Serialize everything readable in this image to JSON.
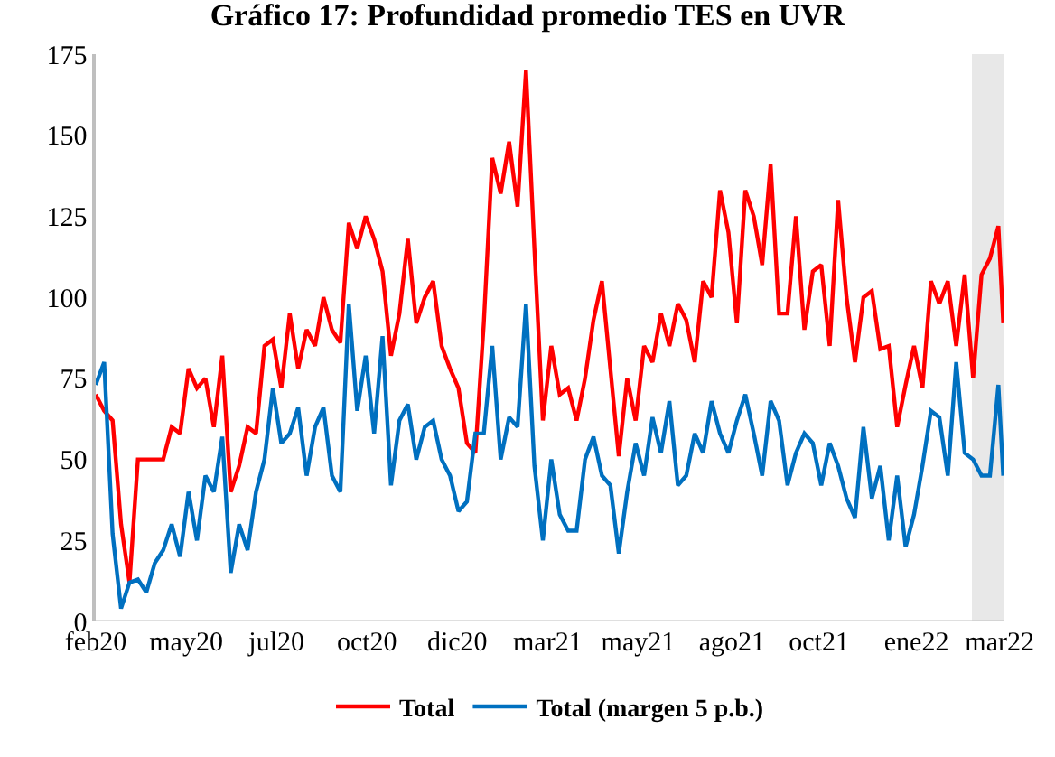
{
  "chart_data": {
    "type": "line",
    "title": "Gráfico 17: Profundidad promedio TES en UVR",
    "xlim": [
      "2020-02-20",
      "2022-03-15"
    ],
    "ylim": [
      0,
      175
    ],
    "yticks": [
      0,
      25,
      50,
      75,
      100,
      125,
      150,
      175
    ],
    "xticks": [
      {
        "value": "2020-02-20",
        "label": "feb20"
      },
      {
        "value": "2020-05-05",
        "label": "may20"
      },
      {
        "value": "2020-07-19",
        "label": "jul20"
      },
      {
        "value": "2020-10-02",
        "label": "oct20"
      },
      {
        "value": "2020-12-16",
        "label": "dic20"
      },
      {
        "value": "2021-03-01",
        "label": "mar21"
      },
      {
        "value": "2021-05-15",
        "label": "may21"
      },
      {
        "value": "2021-08-01",
        "label": "ago21"
      },
      {
        "value": "2021-10-12",
        "label": "oct21"
      },
      {
        "value": "2022-01-01",
        "label": "ene22"
      },
      {
        "value": "2022-03-11",
        "label": "mar22"
      }
    ],
    "grid": false,
    "legend": "bottom",
    "marker": "none",
    "line_style": "solid",
    "bands": [
      {
        "axis": "x",
        "from": "2022-02-16",
        "to": "2022-03-15",
        "color": "#e8e8e8"
      }
    ],
    "x": [
      "2020-02-20",
      "2020-02-27",
      "2020-03-05",
      "2020-03-12",
      "2020-03-19",
      "2020-03-26",
      "2020-04-02",
      "2020-04-09",
      "2020-04-16",
      "2020-04-23",
      "2020-04-30",
      "2020-05-07",
      "2020-05-14",
      "2020-05-21",
      "2020-05-28",
      "2020-06-04",
      "2020-06-11",
      "2020-06-18",
      "2020-06-25",
      "2020-07-02",
      "2020-07-09",
      "2020-07-16",
      "2020-07-23",
      "2020-07-30",
      "2020-08-06",
      "2020-08-13",
      "2020-08-20",
      "2020-08-27",
      "2020-09-03",
      "2020-09-10",
      "2020-09-17",
      "2020-09-24",
      "2020-10-01",
      "2020-10-08",
      "2020-10-15",
      "2020-10-22",
      "2020-10-29",
      "2020-11-05",
      "2020-11-12",
      "2020-11-19",
      "2020-11-26",
      "2020-12-03",
      "2020-12-10",
      "2020-12-17",
      "2020-12-24",
      "2020-12-31",
      "2021-01-07",
      "2021-01-14",
      "2021-01-21",
      "2021-01-28",
      "2021-02-04",
      "2021-02-11",
      "2021-02-18",
      "2021-02-25",
      "2021-03-04",
      "2021-03-11",
      "2021-03-18",
      "2021-03-25",
      "2021-04-01",
      "2021-04-08",
      "2021-04-15",
      "2021-04-22",
      "2021-04-29",
      "2021-05-06",
      "2021-05-13",
      "2021-05-20",
      "2021-05-27",
      "2021-06-03",
      "2021-06-10",
      "2021-06-17",
      "2021-06-24",
      "2021-07-01",
      "2021-07-08",
      "2021-07-15",
      "2021-07-22",
      "2021-07-29",
      "2021-08-05",
      "2021-08-12",
      "2021-08-19",
      "2021-08-26",
      "2021-09-02",
      "2021-09-09",
      "2021-09-16",
      "2021-09-23",
      "2021-09-30",
      "2021-10-07",
      "2021-10-14",
      "2021-10-21",
      "2021-10-28",
      "2021-11-04",
      "2021-11-11",
      "2021-11-18",
      "2021-11-25",
      "2021-12-02",
      "2021-12-09",
      "2021-12-16",
      "2021-12-23",
      "2021-12-30",
      "2022-01-06",
      "2022-01-13",
      "2022-01-20",
      "2022-01-27",
      "2022-02-03",
      "2022-02-10",
      "2022-02-17",
      "2022-02-24",
      "2022-03-03",
      "2022-03-10",
      "2022-03-14"
    ],
    "series": [
      {
        "name": "Total",
        "color": "#ff0000",
        "values": [
          70,
          65,
          62,
          30,
          12,
          50,
          50,
          50,
          50,
          60,
          58,
          78,
          72,
          75,
          60,
          82,
          40,
          48,
          60,
          58,
          85,
          87,
          72,
          95,
          78,
          90,
          85,
          100,
          90,
          86,
          123,
          115,
          125,
          118,
          108,
          82,
          95,
          118,
          92,
          100,
          105,
          85,
          78,
          72,
          55,
          52,
          92,
          143,
          132,
          148,
          128,
          170,
          115,
          62,
          85,
          70,
          72,
          62,
          75,
          93,
          105,
          78,
          51,
          75,
          62,
          85,
          80,
          95,
          85,
          98,
          93,
          80,
          105,
          100,
          133,
          120,
          92,
          133,
          125,
          110,
          141,
          95,
          95,
          125,
          90,
          108,
          110,
          85,
          130,
          100,
          80,
          100,
          102,
          84,
          85,
          60,
          73,
          85,
          72,
          105,
          98,
          105,
          85,
          107,
          75,
          107,
          112,
          122,
          92
        ]
      },
      {
        "name": "Total (margen 5 p.b.)",
        "color": "#0070c0",
        "values": [
          73,
          80,
          27,
          4,
          12,
          13,
          9,
          18,
          22,
          30,
          20,
          40,
          25,
          45,
          40,
          57,
          15,
          30,
          22,
          40,
          50,
          72,
          55,
          58,
          66,
          45,
          60,
          66,
          45,
          40,
          98,
          65,
          82,
          58,
          88,
          42,
          62,
          67,
          50,
          60,
          62,
          50,
          45,
          34,
          37,
          58,
          58,
          85,
          50,
          63,
          60,
          98,
          48,
          25,
          50,
          33,
          28,
          28,
          50,
          57,
          45,
          42,
          21,
          40,
          55,
          45,
          63,
          52,
          68,
          42,
          45,
          58,
          52,
          68,
          58,
          52,
          62,
          70,
          58,
          45,
          68,
          62,
          42,
          52,
          58,
          55,
          42,
          55,
          48,
          38,
          32,
          60,
          38,
          48,
          25,
          45,
          23,
          33,
          48,
          65,
          63,
          45,
          80,
          52,
          50,
          45,
          45,
          73,
          45
        ]
      }
    ]
  }
}
